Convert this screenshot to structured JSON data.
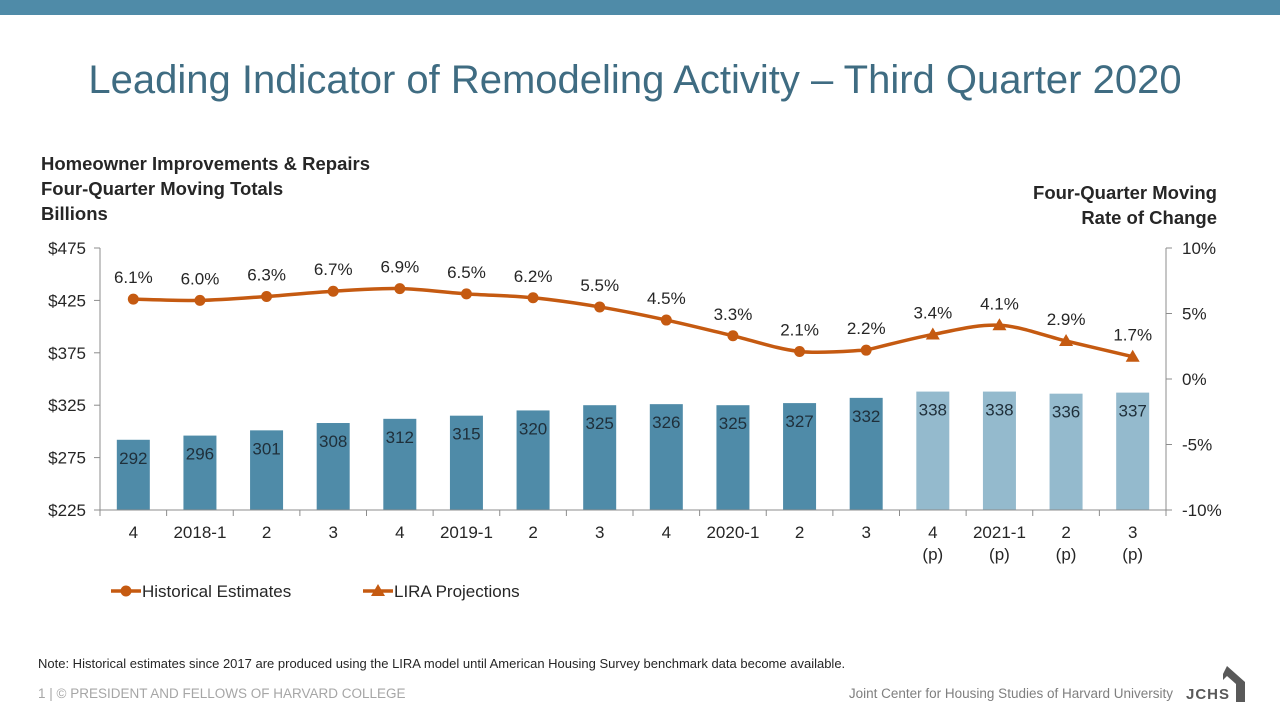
{
  "header": {
    "title": "Leading Indicator of Remodeling Activity – Third Quarter 2020"
  },
  "chart_data": {
    "type": "bar",
    "left_axis_title": [
      "Homeowner Improvements & Repairs",
      "Four-Quarter Moving Totals",
      "Billions"
    ],
    "right_axis_title": [
      "Four-Quarter Moving",
      "Rate of Change"
    ],
    "categories": [
      [
        "4",
        ""
      ],
      [
        "2018-1",
        ""
      ],
      [
        "2",
        ""
      ],
      [
        "3",
        ""
      ],
      [
        "4",
        ""
      ],
      [
        "2019-1",
        ""
      ],
      [
        "2",
        ""
      ],
      [
        "3",
        ""
      ],
      [
        "4",
        ""
      ],
      [
        "2020-1",
        ""
      ],
      [
        "2",
        ""
      ],
      [
        "3",
        ""
      ],
      [
        "4",
        "(p)"
      ],
      [
        "2021-1",
        "(p)"
      ],
      [
        "2",
        "(p)"
      ],
      [
        "3",
        "(p)"
      ]
    ],
    "left_axis": {
      "ylim": [
        225,
        475
      ],
      "ticks": [
        475,
        425,
        375,
        325,
        275,
        225
      ],
      "tick_labels": [
        "$475",
        "$425",
        "$375",
        "$325",
        "$275",
        "$225"
      ]
    },
    "right_axis": {
      "ylim": [
        -10,
        10
      ],
      "ticks": [
        10,
        5,
        0,
        -5,
        -10
      ],
      "tick_labels": [
        "10%",
        "5%",
        "0%",
        "-5%",
        "-10%"
      ]
    },
    "series": [
      {
        "name": "Homeowner Improvements & Repairs (Billions)",
        "kind": "bar",
        "axis": "left",
        "values": [
          292,
          296,
          301,
          308,
          312,
          315,
          320,
          325,
          326,
          325,
          327,
          332,
          338,
          338,
          336,
          337
        ],
        "projected": [
          false,
          false,
          false,
          false,
          false,
          false,
          false,
          false,
          false,
          false,
          false,
          false,
          true,
          true,
          true,
          true
        ],
        "color": "#4f8ba8",
        "projected_color": "#94bacd"
      },
      {
        "name": "Historical Estimates",
        "kind": "line",
        "axis": "right",
        "marker": "circle",
        "x_index": [
          0,
          1,
          2,
          3,
          4,
          5,
          6,
          7,
          8,
          9,
          10,
          11
        ],
        "values": [
          6.1,
          6.0,
          6.3,
          6.7,
          6.9,
          6.5,
          6.2,
          5.5,
          4.5,
          3.3,
          2.1,
          2.2
        ],
        "color": "#c55a11"
      },
      {
        "name": "LIRA Projections",
        "kind": "line",
        "axis": "right",
        "marker": "triangle",
        "x_index": [
          11,
          12,
          13,
          14,
          15
        ],
        "values": [
          2.2,
          3.4,
          4.1,
          2.9,
          1.7
        ],
        "color": "#c55a11"
      }
    ],
    "rate_labels": [
      "6.1%",
      "6.0%",
      "6.3%",
      "6.7%",
      "6.9%",
      "6.5%",
      "6.2%",
      "5.5%",
      "4.5%",
      "3.3%",
      "2.1%",
      "2.2%",
      "3.4%",
      "4.1%",
      "2.9%",
      "1.7%"
    ],
    "legend": {
      "position": "bottom-left",
      "entries": [
        "Historical Estimates",
        "LIRA Projections"
      ]
    },
    "grid": false
  },
  "footer": {
    "note": "Note: Historical estimates since 2017 are produced using the LIRA model until American Housing Survey benchmark data become available.",
    "copyright": "1 | © PRESIDENT AND FELLOWS OF HARVARD COLLEGE",
    "org": "Joint Center for Housing Studies of Harvard University",
    "logo_text": "JCHS"
  }
}
